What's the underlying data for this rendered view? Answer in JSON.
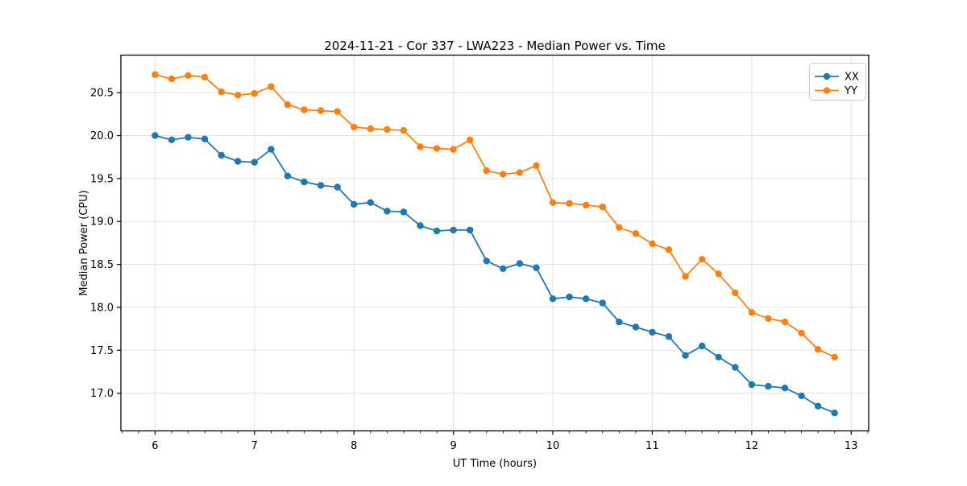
{
  "chart_data": {
    "type": "line",
    "title": "2024-11-21 - Cor 337 - LWA223 - Median Power vs. Time",
    "xlabel": "UT Time (hours)",
    "ylabel": "Median Power (CPU)",
    "x": [
      6.0,
      6.1667,
      6.3333,
      6.5,
      6.6667,
      6.8333,
      7.0,
      7.1667,
      7.3333,
      7.5,
      7.6667,
      7.8333,
      8.0,
      8.1667,
      8.3333,
      8.5,
      8.6667,
      8.8333,
      9.0,
      9.1667,
      9.3333,
      9.5,
      9.6667,
      9.8333,
      10.0,
      10.1667,
      10.3333,
      10.5,
      10.6667,
      10.8333,
      11.0,
      11.1667,
      11.3333,
      11.5,
      11.6667,
      11.8333,
      12.0,
      12.1667,
      12.3333,
      12.5,
      12.6667,
      12.8333
    ],
    "series": [
      {
        "name": "XX",
        "color": "#1f77b4",
        "values": [
          20.0,
          19.95,
          19.98,
          19.96,
          19.77,
          19.7,
          19.69,
          19.84,
          19.53,
          19.46,
          19.42,
          19.4,
          19.2,
          19.22,
          19.12,
          19.11,
          18.95,
          18.89,
          18.9,
          18.9,
          18.54,
          18.45,
          18.51,
          18.46,
          18.1,
          18.12,
          18.1,
          18.05,
          17.83,
          17.77,
          17.71,
          17.66,
          17.44,
          17.55,
          17.42,
          17.3,
          17.1,
          17.08,
          17.06,
          16.97,
          16.85,
          16.77
        ]
      },
      {
        "name": "YY",
        "color": "#ff7f0e",
        "values": [
          20.71,
          20.66,
          20.7,
          20.68,
          20.51,
          20.47,
          20.49,
          20.57,
          20.36,
          20.3,
          20.29,
          20.28,
          20.1,
          20.08,
          20.07,
          20.06,
          19.87,
          19.85,
          19.84,
          19.95,
          19.59,
          19.55,
          19.57,
          19.65,
          19.22,
          19.21,
          19.19,
          19.17,
          18.93,
          18.86,
          18.74,
          18.67,
          18.36,
          18.56,
          18.39,
          18.17,
          17.94,
          17.87,
          17.83,
          17.7,
          17.51,
          17.42
        ]
      }
    ],
    "xlim": [
      5.6564,
      13.176
    ],
    "ylim": [
      16.561,
      20.937
    ],
    "xticks": [
      6,
      7,
      8,
      9,
      10,
      11,
      12,
      13
    ],
    "yticks": [
      17.0,
      17.5,
      18.0,
      18.5,
      19.0,
      19.5,
      20.0,
      20.5
    ],
    "x_minor_step": 0.16667,
    "grid": true,
    "grid_color": "#e0e0e0",
    "spine_color": "#000000",
    "background": "#ffffff",
    "legend_position": "upper right",
    "marker": "circle"
  }
}
